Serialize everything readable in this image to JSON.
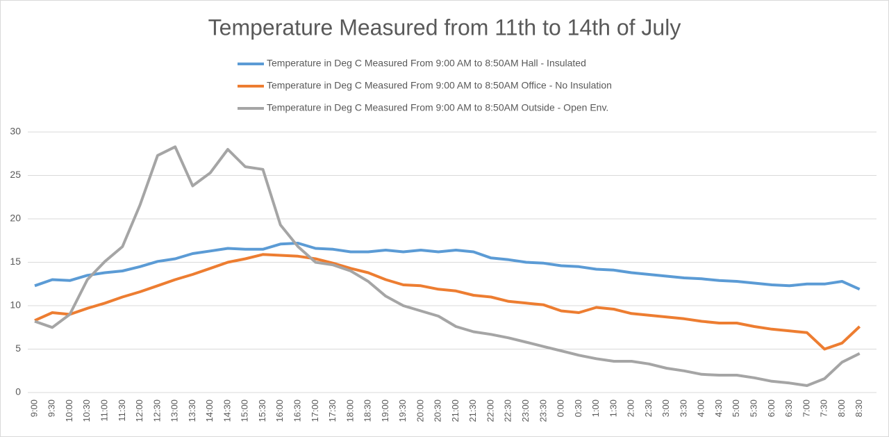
{
  "chart_data": {
    "type": "line",
    "title": "Temperature Measured from 11th to 14th of July",
    "categories": [
      "9:00",
      "9:30",
      "10:00",
      "10:30",
      "11:00",
      "11:30",
      "12:00",
      "12:30",
      "13:00",
      "13:30",
      "14:00",
      "14:30",
      "15:00",
      "15:30",
      "16:00",
      "16:30",
      "17:00",
      "17:30",
      "18:00",
      "18:30",
      "19:00",
      "19:30",
      "20:00",
      "20:30",
      "21:00",
      "21:30",
      "22:00",
      "22:30",
      "23:00",
      "23:30",
      "0:00",
      "0:30",
      "1:00",
      "1:30",
      "2:00",
      "2:30",
      "3:00",
      "3:30",
      "4:00",
      "4:30",
      "5:00",
      "5:30",
      "6:00",
      "6:30",
      "7:00",
      "7:30",
      "8:00",
      "8:30"
    ],
    "series": [
      {
        "name": "Temperature in Deg C Measured From 9:00 AM to 8:50AM Hall - Insulated",
        "color": "#5b9bd5",
        "values": [
          12.3,
          13.0,
          12.9,
          13.5,
          13.8,
          14.0,
          14.5,
          15.1,
          15.4,
          16.0,
          16.3,
          16.6,
          16.5,
          16.5,
          17.1,
          17.2,
          16.6,
          16.5,
          16.2,
          16.2,
          16.4,
          16.2,
          16.4,
          16.2,
          16.4,
          16.2,
          15.5,
          15.3,
          15.0,
          14.9,
          14.6,
          14.5,
          14.2,
          14.1,
          13.8,
          13.6,
          13.4,
          13.2,
          13.1,
          12.9,
          12.8,
          12.6,
          12.4,
          12.3,
          12.5,
          12.5,
          12.8,
          11.9
        ]
      },
      {
        "name": "Temperature in Deg C Measured From 9:00 AM to 8:50AM Office - No Insulation",
        "color": "#ed7d31",
        "values": [
          8.3,
          9.2,
          9.0,
          9.7,
          10.3,
          11.0,
          11.6,
          12.3,
          13.0,
          13.6,
          14.3,
          15.0,
          15.4,
          15.9,
          15.8,
          15.7,
          15.4,
          14.9,
          14.3,
          13.8,
          13.0,
          12.4,
          12.3,
          11.9,
          11.7,
          11.2,
          11.0,
          10.5,
          10.3,
          10.1,
          9.4,
          9.2,
          9.8,
          9.6,
          9.1,
          8.9,
          8.7,
          8.5,
          8.2,
          8.0,
          8.0,
          7.6,
          7.3,
          7.1,
          6.9,
          5.0,
          5.7,
          7.6
        ]
      },
      {
        "name": "Temperature in Deg C Measured From 9:00 AM to 8:50AM Outside - Open Env.",
        "color": "#a5a5a5",
        "values": [
          8.2,
          7.5,
          9.0,
          13.0,
          15.1,
          16.8,
          21.6,
          27.3,
          28.3,
          23.8,
          25.3,
          28.0,
          26.0,
          25.7,
          19.3,
          16.8,
          15.0,
          14.7,
          14.0,
          12.8,
          11.1,
          10.0,
          9.4,
          8.8,
          7.6,
          7.0,
          6.7,
          6.3,
          5.8,
          5.3,
          4.8,
          4.3,
          3.9,
          3.6,
          3.6,
          3.3,
          2.8,
          2.5,
          2.1,
          2.0,
          2.0,
          1.7,
          1.3,
          1.1,
          0.8,
          1.6,
          3.5,
          4.5
        ]
      }
    ],
    "ylim": [
      0,
      30
    ],
    "yticks": [
      0,
      5,
      10,
      15,
      20,
      25,
      30
    ],
    "grid": true,
    "legend": "top"
  }
}
